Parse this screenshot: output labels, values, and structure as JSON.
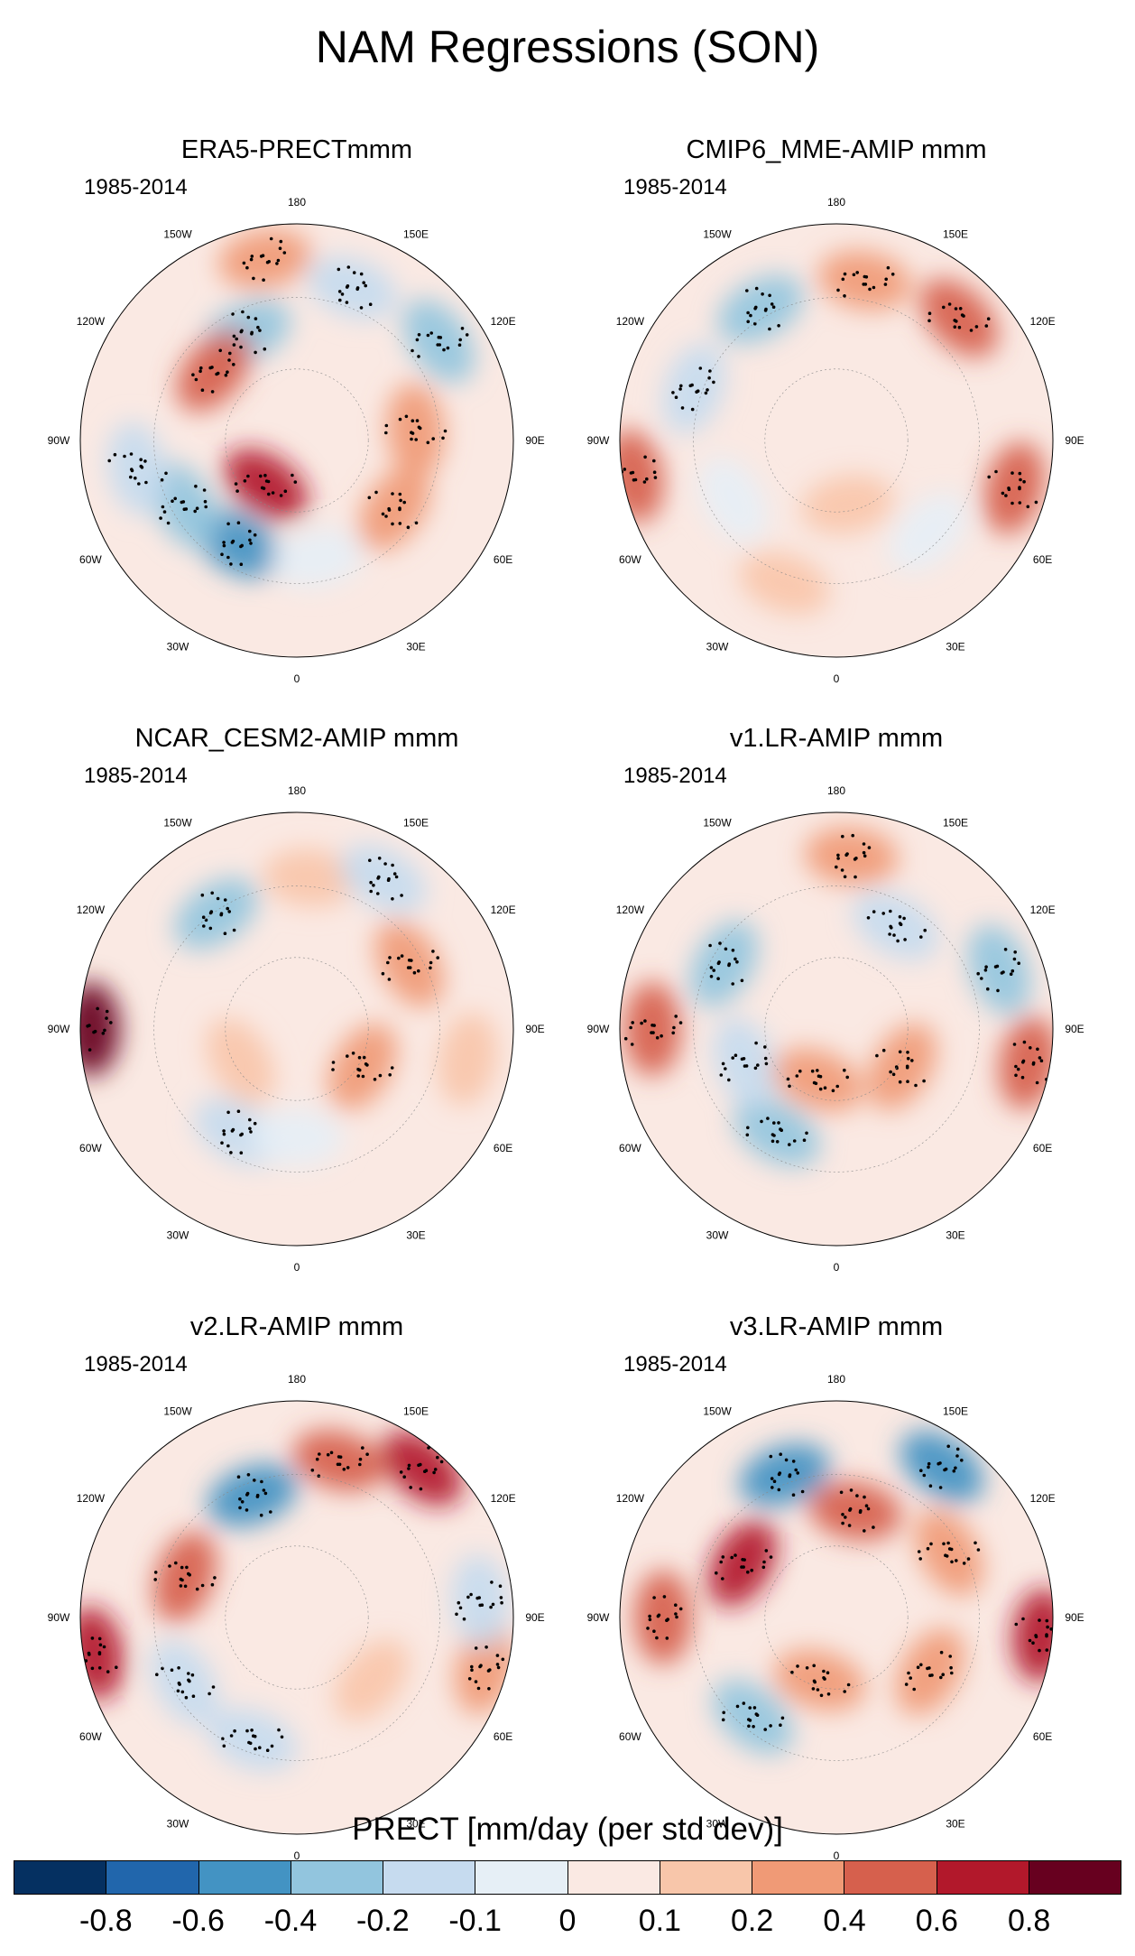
{
  "figure": {
    "title": "NAM Regressions (SON)"
  },
  "chart_data": [
    {
      "type": "heatmap",
      "projection": "north polar stereographic",
      "title": "ERA5-PRECTmmm",
      "period": "1985-2014",
      "lon_labels": [
        "180",
        "150E",
        "120E",
        "90E",
        "60E",
        "30E",
        "0",
        "30W",
        "60W",
        "90W",
        "120W",
        "150W"
      ],
      "anomalies": [
        {
          "lon": -155,
          "r": 0.55,
          "v": -0.4
        },
        {
          "lon": -130,
          "r": 0.5,
          "v": 0.4
        },
        {
          "lon": 125,
          "r": 0.8,
          "v": -0.4
        },
        {
          "lon": 95,
          "r": 0.55,
          "v": 0.2
        },
        {
          "lon": 55,
          "r": 0.55,
          "v": 0.2
        },
        {
          "lon": -30,
          "r": 0.55,
          "v": -0.6
        },
        {
          "lon": -60,
          "r": 0.6,
          "v": -0.4
        },
        {
          "lon": -35,
          "r": 0.25,
          "v": 0.6
        },
        {
          "lon": -80,
          "r": 0.75,
          "v": -0.2
        },
        {
          "lon": 160,
          "r": 0.75,
          "v": -0.2
        },
        {
          "lon": -170,
          "r": 0.85,
          "v": 0.2
        },
        {
          "lon": 10,
          "r": 0.55,
          "v": -0.1
        }
      ]
    },
    {
      "type": "heatmap",
      "projection": "north polar stereographic",
      "title": "CMIP6_MME-AMIP  mmm",
      "period": "1985-2014",
      "lon_labels": [
        "180",
        "150E",
        "120E",
        "90E",
        "60E",
        "30E",
        "0",
        "30W",
        "60W",
        "90W",
        "120W",
        "150W"
      ],
      "anomalies": [
        {
          "lon": -150,
          "r": 0.7,
          "v": -0.4
        },
        {
          "lon": -110,
          "r": 0.7,
          "v": -0.2
        },
        {
          "lon": 170,
          "r": 0.75,
          "v": 0.2
        },
        {
          "lon": 135,
          "r": 0.8,
          "v": 0.4
        },
        {
          "lon": 75,
          "r": 0.85,
          "v": 0.4
        },
        {
          "lon": 45,
          "r": 0.6,
          "v": -0.1
        },
        {
          "lon": -80,
          "r": 0.95,
          "v": 0.4
        },
        {
          "lon": 10,
          "r": 0.3,
          "v": 0.1
        },
        {
          "lon": -20,
          "r": 0.7,
          "v": 0.1
        },
        {
          "lon": -60,
          "r": 0.55,
          "v": -0.1
        }
      ]
    },
    {
      "type": "heatmap",
      "projection": "north polar stereographic",
      "title": "NCAR_CESM2-AMIP  mmm",
      "period": "1985-2014",
      "lon_labels": [
        "180",
        "150E",
        "120E",
        "90E",
        "60E",
        "30E",
        "0",
        "30W",
        "60W",
        "90W",
        "120W",
        "150W"
      ],
      "anomalies": [
        {
          "lon": -145,
          "r": 0.65,
          "v": -0.4
        },
        {
          "lon": -90,
          "r": 0.95,
          "v": 0.8
        },
        {
          "lon": 120,
          "r": 0.6,
          "v": 0.2
        },
        {
          "lon": 60,
          "r": 0.35,
          "v": 0.2
        },
        {
          "lon": 80,
          "r": 0.8,
          "v": 0.1
        },
        {
          "lon": -30,
          "r": 0.55,
          "v": -0.2
        },
        {
          "lon": 0,
          "r": 0.5,
          "v": -0.1
        },
        {
          "lon": -60,
          "r": 0.3,
          "v": 0.1
        },
        {
          "lon": 175,
          "r": 0.7,
          "v": 0.1
        },
        {
          "lon": 150,
          "r": 0.8,
          "v": -0.2
        }
      ]
    },
    {
      "type": "heatmap",
      "projection": "north polar stereographic",
      "title": "v1.LR-AMIP  mmm",
      "period": "1985-2014",
      "lon_labels": [
        "180",
        "150E",
        "120E",
        "90E",
        "60E",
        "30E",
        "0",
        "30W",
        "60W",
        "90W",
        "120W",
        "150W"
      ],
      "anomalies": [
        {
          "lon": -120,
          "r": 0.6,
          "v": -0.4
        },
        {
          "lon": 110,
          "r": 0.8,
          "v": -0.4
        },
        {
          "lon": -90,
          "r": 0.85,
          "v": 0.4
        },
        {
          "lon": -30,
          "r": 0.55,
          "v": -0.4
        },
        {
          "lon": 60,
          "r": 0.35,
          "v": 0.2
        },
        {
          "lon": 175,
          "r": 0.8,
          "v": 0.2
        },
        {
          "lon": -70,
          "r": 0.45,
          "v": -0.2
        },
        {
          "lon": -20,
          "r": 0.25,
          "v": 0.2
        },
        {
          "lon": 150,
          "r": 0.55,
          "v": -0.2
        },
        {
          "lon": 80,
          "r": 0.9,
          "v": 0.4
        }
      ]
    },
    {
      "type": "heatmap",
      "projection": "north polar stereographic",
      "title": "v2.LR-AMIP  mmm",
      "period": "1985-2014",
      "lon_labels": [
        "180",
        "150E",
        "120E",
        "90E",
        "60E",
        "30E",
        "0",
        "30W",
        "60W",
        "90W",
        "120W",
        "150W"
      ],
      "anomalies": [
        {
          "lon": -160,
          "r": 0.6,
          "v": -0.6
        },
        {
          "lon": 140,
          "r": 0.9,
          "v": 0.6
        },
        {
          "lon": 165,
          "r": 0.75,
          "v": 0.4
        },
        {
          "lon": -110,
          "r": 0.55,
          "v": 0.4
        },
        {
          "lon": -80,
          "r": 0.95,
          "v": 0.6
        },
        {
          "lon": 75,
          "r": 0.9,
          "v": 0.2
        },
        {
          "lon": 95,
          "r": 0.85,
          "v": -0.2
        },
        {
          "lon": -20,
          "r": 0.6,
          "v": -0.2
        },
        {
          "lon": -60,
          "r": 0.6,
          "v": -0.2
        },
        {
          "lon": 50,
          "r": 0.45,
          "v": 0.1
        }
      ]
    },
    {
      "type": "heatmap",
      "projection": "north polar stereographic",
      "title": "v3.LR-AMIP  mmm",
      "period": "1985-2014",
      "lon_labels": [
        "180",
        "150E",
        "120E",
        "90E",
        "60E",
        "30E",
        "0",
        "30W",
        "60W",
        "90W",
        "120W",
        "150W"
      ],
      "anomalies": [
        {
          "lon": -160,
          "r": 0.7,
          "v": -0.6
        },
        {
          "lon": 145,
          "r": 0.85,
          "v": -0.6
        },
        {
          "lon": -120,
          "r": 0.5,
          "v": 0.6
        },
        {
          "lon": -40,
          "r": 0.6,
          "v": -0.4
        },
        {
          "lon": 85,
          "r": 0.95,
          "v": 0.6
        },
        {
          "lon": -90,
          "r": 0.8,
          "v": 0.4
        },
        {
          "lon": 60,
          "r": 0.5,
          "v": 0.2
        },
        {
          "lon": 120,
          "r": 0.6,
          "v": 0.2
        },
        {
          "lon": -15,
          "r": 0.3,
          "v": 0.2
        },
        {
          "lon": 170,
          "r": 0.5,
          "v": 0.4
        }
      ]
    }
  ],
  "colorbar": {
    "label": "PRECT [mm/day (per std dev)]",
    "colors": [
      "#053061",
      "#2166ac",
      "#4393c3",
      "#92c5de",
      "#c6dbef",
      "#e6eff6",
      "#fae9e3",
      "#f8c6aa",
      "#f09a76",
      "#d6604d",
      "#b2182b",
      "#67001f"
    ],
    "ticks": [
      "-0.8",
      "-0.6",
      "-0.4",
      "-0.2",
      "-0.1",
      "0",
      "0.1",
      "0.2",
      "0.4",
      "0.6",
      "0.8"
    ]
  }
}
